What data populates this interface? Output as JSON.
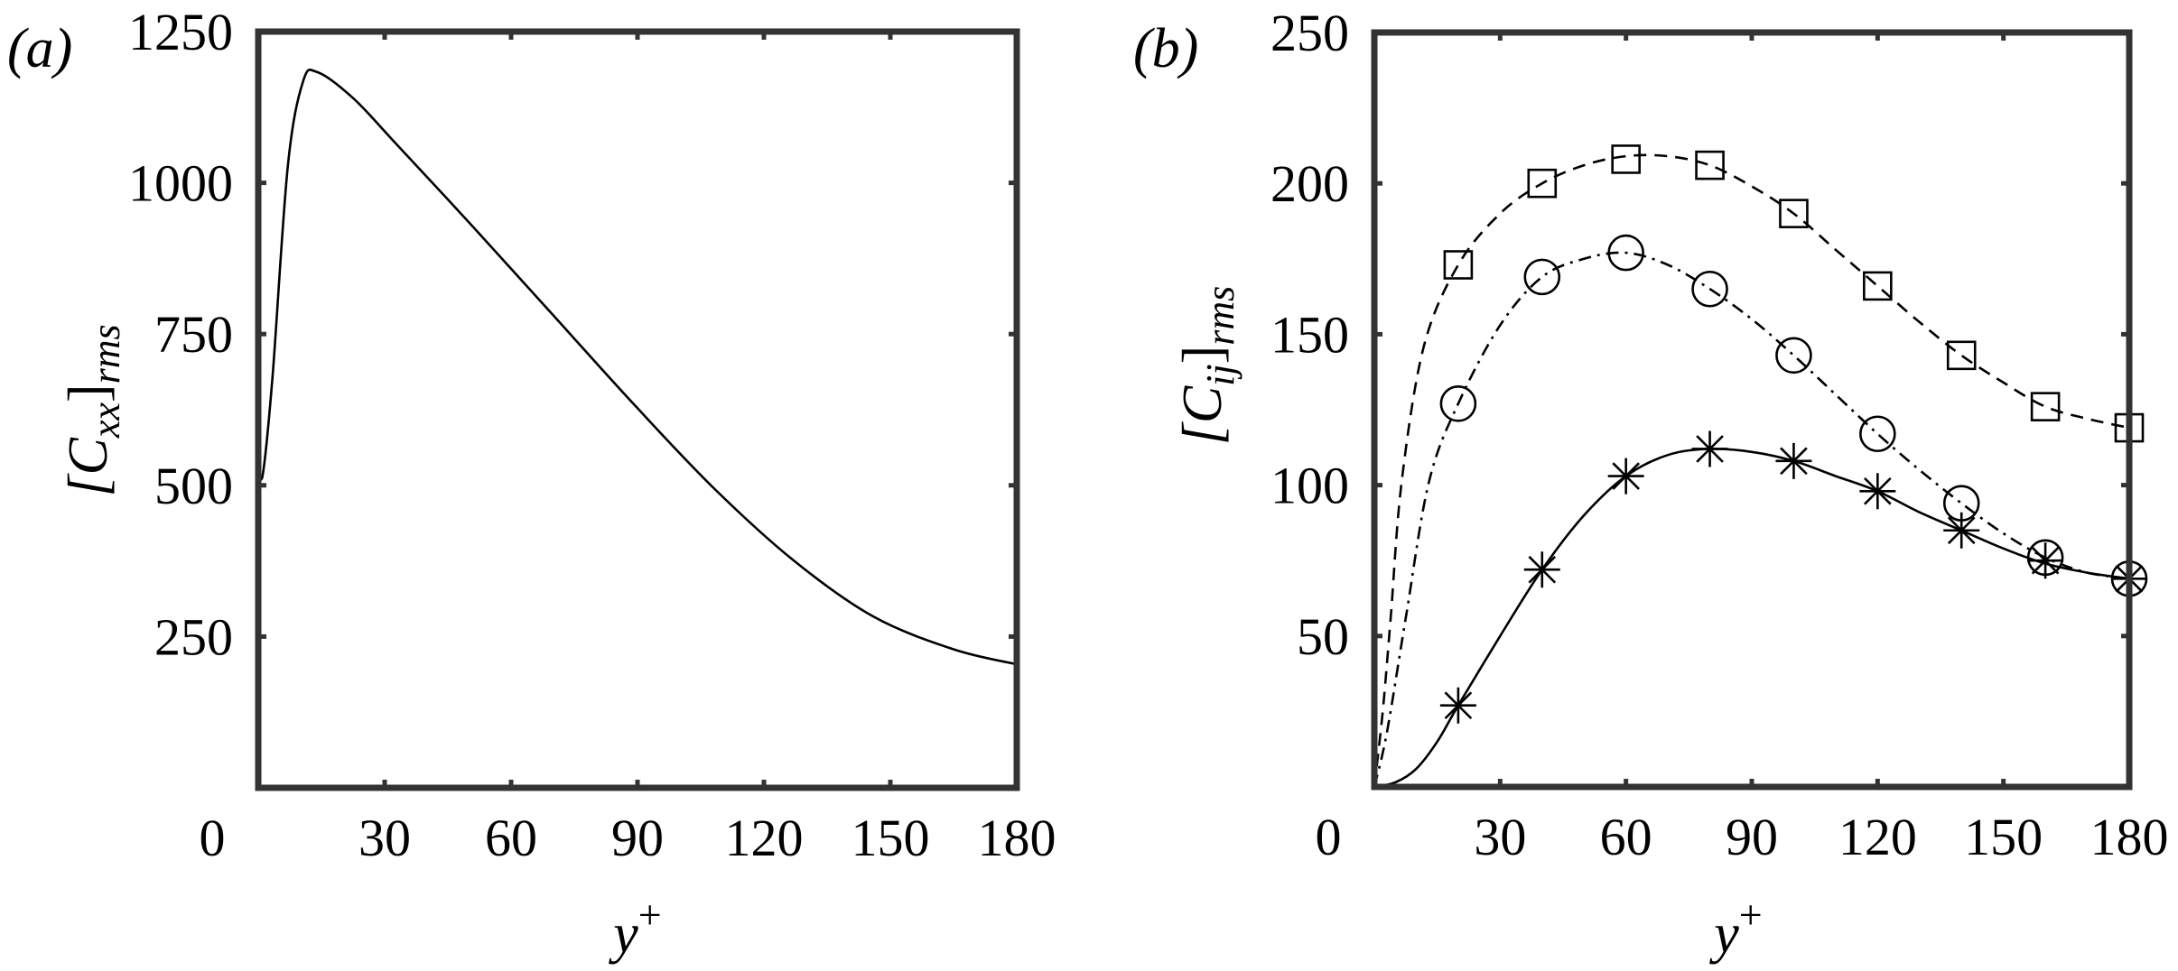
{
  "figure": {
    "panels": [
      {
        "id": "a",
        "label": "(a)",
        "ylabel": "[Cxx]rms",
        "ylabel_main": "[C",
        "ylabel_sub": "xx",
        "ylabel_close": "]",
        "ylabel_sub2": "rms",
        "xlabel_main": "y",
        "xlabel_sup": "+"
      },
      {
        "id": "b",
        "label": "(b)",
        "ylabel": "[Cij]rms",
        "ylabel_main": "[C",
        "ylabel_sub": "ij",
        "ylabel_close": "]",
        "ylabel_sub2": "rms",
        "xlabel_main": "y",
        "xlabel_sup": "+"
      }
    ]
  },
  "chart_data": [
    {
      "type": "line",
      "panel": "(a)",
      "title": "",
      "xlabel": "y+",
      "ylabel": "[Cxx]rms",
      "xlim": [
        0,
        180
      ],
      "ylim": [
        0,
        1250
      ],
      "xticks": [
        0,
        30,
        60,
        90,
        120,
        150,
        180
      ],
      "yticks": [
        250,
        500,
        750,
        1000,
        1250
      ],
      "grid": false,
      "legend": null,
      "series": [
        {
          "name": "Cxx",
          "line_style": "solid",
          "marker": "none",
          "x": [
            0,
            1,
            3.4,
            7,
            10.6,
            14,
            22.5,
            32,
            51,
            70,
            89,
            108,
            127,
            146,
            165,
            180
          ],
          "y": [
            549,
            515,
            681,
            1027,
            1167,
            1183,
            1140,
            1070,
            927,
            781,
            635,
            496,
            376,
            283,
            229,
            204
          ]
        }
      ]
    },
    {
      "type": "line",
      "panel": "(b)",
      "title": "",
      "xlabel": "y+",
      "ylabel": "[Cij]rms",
      "xlim": [
        0,
        180
      ],
      "ylim": [
        0,
        250
      ],
      "xticks": [
        0,
        30,
        60,
        90,
        120,
        150,
        180
      ],
      "yticks": [
        50,
        100,
        150,
        200,
        250
      ],
      "grid": false,
      "legend": null,
      "series": [
        {
          "name": "square-dashed",
          "line_style": "dashed",
          "marker": "square",
          "curve_x": [
            0,
            2,
            3.9,
            6.5,
            11.8,
            20,
            30,
            40,
            50,
            60,
            70,
            80,
            90,
            100,
            110,
            120,
            130,
            140,
            150,
            160,
            170,
            180
          ],
          "curve_y": [
            0,
            25,
            56,
            101,
            146,
            173,
            190,
            200,
            206,
            209,
            209,
            206,
            199,
            190,
            178,
            166,
            154,
            143,
            134,
            126,
            122,
            119
          ],
          "marker_x": [
            20,
            40,
            60,
            80,
            100,
            120,
            140,
            160,
            180
          ],
          "marker_y": [
            173,
            200,
            208,
            206,
            190,
            166,
            143,
            126,
            119
          ]
        },
        {
          "name": "circle-dashdot",
          "line_style": "dashdot",
          "marker": "circle",
          "curve_x": [
            0,
            3,
            7.5,
            13,
            20,
            30,
            40,
            50,
            60,
            70,
            80,
            90,
            100,
            110,
            120,
            130,
            140,
            150,
            160,
            170,
            180
          ],
          "curve_y": [
            0,
            18,
            56,
            101,
            127,
            153,
            169,
            175,
            177,
            173,
            165,
            155,
            143,
            130,
            117,
            105,
            94,
            84,
            76,
            71,
            69
          ],
          "marker_x": [
            20,
            40,
            60,
            80,
            100,
            120,
            140,
            160,
            180
          ],
          "marker_y": [
            127,
            169,
            177,
            165,
            143,
            117,
            94,
            76,
            69
          ]
        },
        {
          "name": "star-solid",
          "line_style": "solid",
          "marker": "asterisk",
          "curve_x": [
            0,
            5,
            10,
            15,
            20,
            30,
            40,
            50,
            60,
            70,
            80,
            90,
            100,
            110,
            120,
            130,
            140,
            150,
            160,
            170,
            180
          ],
          "curve_y": [
            0,
            1.5,
            6,
            15,
            27,
            50,
            72,
            90,
            103,
            110,
            112,
            111,
            108,
            103,
            98,
            91,
            85,
            79,
            74,
            71,
            69
          ],
          "marker_x": [
            20,
            40,
            60,
            80,
            100,
            120,
            140,
            160,
            180
          ],
          "marker_y": [
            27,
            72,
            103,
            112,
            108,
            98,
            85,
            75,
            69
          ]
        }
      ]
    }
  ]
}
